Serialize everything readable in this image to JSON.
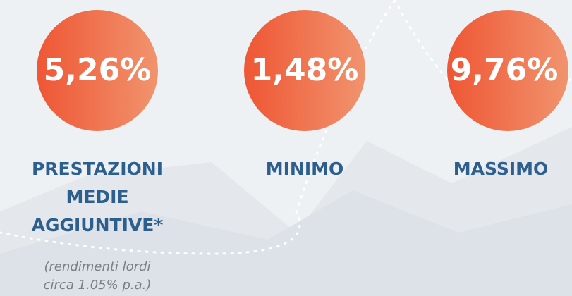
{
  "items": [
    {
      "value": "5,26%",
      "label": "PRESTAZIONI MEDIE AGGIUNTIVE*",
      "note": "(rendimenti lordi circa 1.05% p.a.)"
    },
    {
      "value": "1,48%",
      "label": "MINIMO"
    },
    {
      "value": "9,76%",
      "label": "MASSIMO"
    }
  ]
}
